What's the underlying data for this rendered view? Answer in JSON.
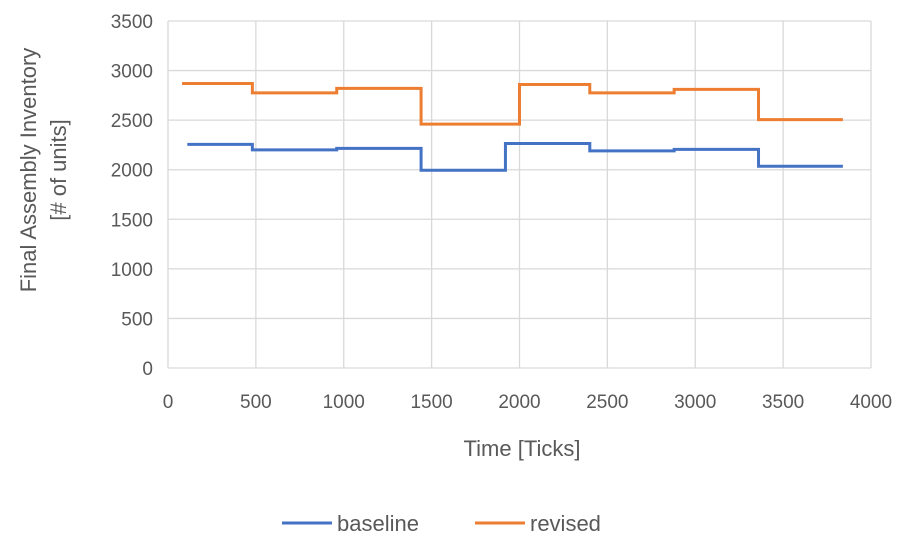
{
  "chart_data": {
    "type": "line",
    "title": "",
    "xlabel": "Time [Ticks]",
    "ylabel_lines": [
      "Final Assembly Inventory",
      "[# of units]"
    ],
    "xlim": [
      0,
      4000
    ],
    "ylim": [
      0,
      3500
    ],
    "x_ticks": [
      0,
      500,
      1000,
      1500,
      2000,
      2500,
      3000,
      3500,
      4000
    ],
    "y_ticks": [
      0,
      500,
      1000,
      1500,
      2000,
      2500,
      3000,
      3500
    ],
    "x_tick_labels": [
      "0",
      "500",
      "1000",
      "1500",
      "2000",
      "2500",
      "3000",
      "3500",
      "4000"
    ],
    "y_tick_labels": [
      "0",
      "500",
      "1000",
      "1500",
      "2000",
      "2500",
      "3000",
      "3500"
    ],
    "grid": true,
    "legend_position": "bottom",
    "series": [
      {
        "name": "baseline",
        "color": "#4472C4",
        "step": "post",
        "x": [
          110,
          480,
          960,
          1440,
          1920,
          2400,
          2880,
          3360,
          3840
        ],
        "y": [
          2255,
          2200,
          2215,
          1995,
          2265,
          2190,
          2205,
          2035,
          2035
        ]
      },
      {
        "name": "revised",
        "color": "#ED7D31",
        "step": "post",
        "x": [
          80,
          480,
          960,
          1440,
          2000,
          2400,
          2880,
          3360,
          3840
        ],
        "y": [
          2870,
          2775,
          2820,
          2460,
          2860,
          2775,
          2810,
          2505,
          2505
        ]
      }
    ]
  }
}
